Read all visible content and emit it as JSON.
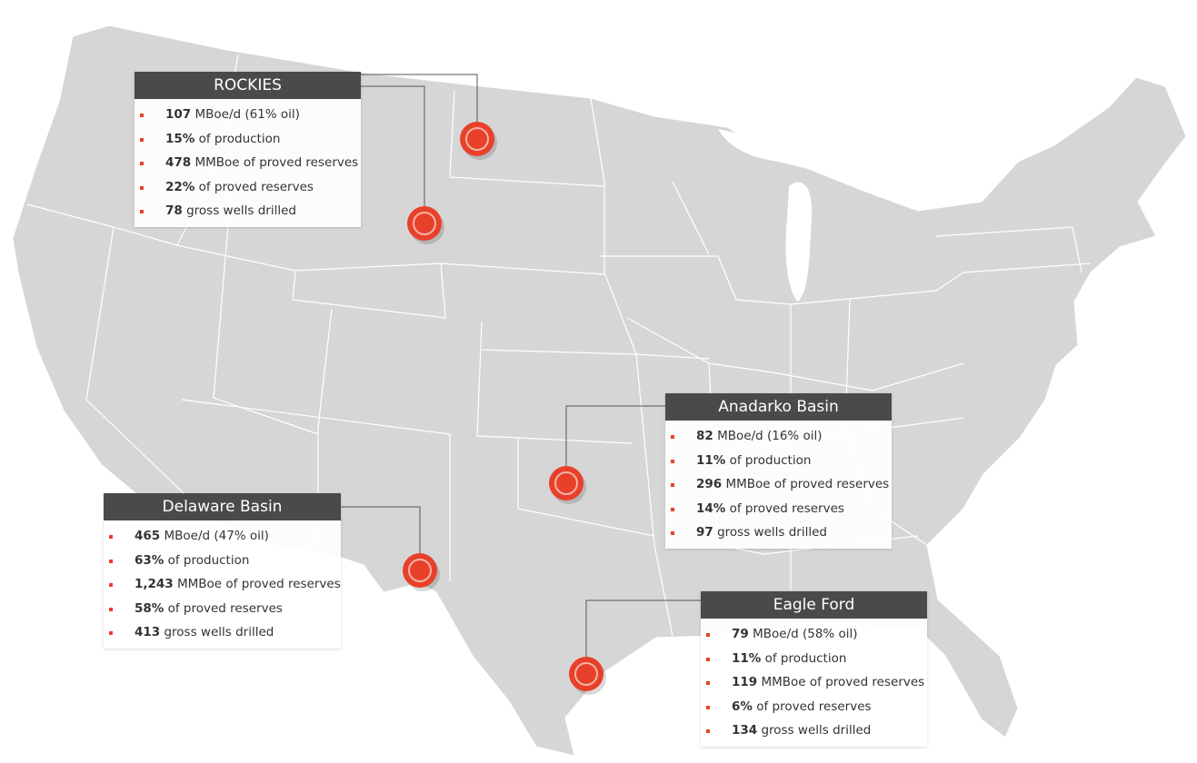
{
  "colors": {
    "land": "#d6d6d6",
    "borders": "#ffffff",
    "marker": "#e8402a",
    "header": "#4a4a4a",
    "bullet": "#e8402a"
  },
  "regions": [
    {
      "title": "ROCKIES",
      "items": [
        {
          "bold": "107",
          "text": " MBoe/d (61% oil)"
        },
        {
          "bold": "15%",
          "text": " of production"
        },
        {
          "bold": "478",
          "text": " MMBoe of proved reserves"
        },
        {
          "bold": "22%",
          "text": " of proved reserves"
        },
        {
          "bold": "78",
          "text": " gross wells drilled"
        }
      ]
    },
    {
      "title": "Anadarko Basin",
      "items": [
        {
          "bold": "82",
          "text": " MBoe/d (16% oil)"
        },
        {
          "bold": "11%",
          "text": " of production"
        },
        {
          "bold": "296",
          "text": " MMBoe of proved reserves"
        },
        {
          "bold": "14%",
          "text": " of proved reserves"
        },
        {
          "bold": "97",
          "text": " gross wells drilled"
        }
      ]
    },
    {
      "title": "Delaware Basin",
      "items": [
        {
          "bold": "465",
          "text": " MBoe/d (47% oil)"
        },
        {
          "bold": "63%",
          "text": " of production"
        },
        {
          "bold": "1,243",
          "text": " MMBoe of proved reserves"
        },
        {
          "bold": "58%",
          "text": " of proved reserves"
        },
        {
          "bold": "413",
          "text": " gross wells drilled"
        }
      ]
    },
    {
      "title": "Eagle Ford",
      "items": [
        {
          "bold": "79",
          "text": " MBoe/d (58% oil)"
        },
        {
          "bold": "11%",
          "text": " of production"
        },
        {
          "bold": "119",
          "text": " MMBoe of proved reserves"
        },
        {
          "bold": "6%",
          "text": " of proved reserves"
        },
        {
          "bold": "134",
          "text": " gross wells drilled"
        }
      ]
    }
  ]
}
